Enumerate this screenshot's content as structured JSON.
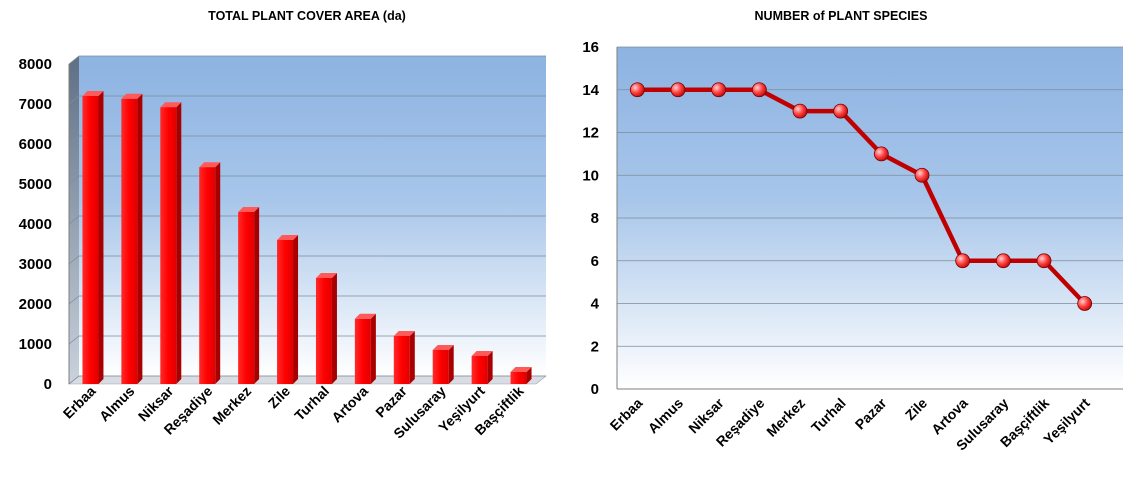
{
  "chart_data": [
    {
      "type": "bar",
      "title": "TOTAL PLANT COVER AREA (da)",
      "categories": [
        "Erbaa",
        "Almus",
        "Niksar",
        "Reşadiye",
        "Merkez",
        "Zile",
        "Turhal",
        "Artova",
        "Pazar",
        "Sulusaray",
        "Yeşilyurt",
        "Başçiftlik"
      ],
      "values": [
        7200,
        7130,
        6920,
        5420,
        4300,
        3600,
        2650,
        1630,
        1200,
        850,
        700,
        300
      ],
      "yticks": [
        "0",
        "1000",
        "2000",
        "3000",
        "4000",
        "5000",
        "6000",
        "7000",
        "8000"
      ],
      "ylim": [
        0,
        8000
      ],
      "grid": true,
      "colors": {
        "bar": "#ff0000",
        "bar_side": "#a80000",
        "bar_top": "#ff5a5a",
        "plot_top": "#8db3e2",
        "plot_bottom": "#ffffff"
      }
    },
    {
      "type": "line",
      "title": "NUMBER of PLANT SPECIES",
      "categories": [
        "Erbaa",
        "Almus",
        "Niksar",
        "Reşadiye",
        "Merkez",
        "Turhal",
        "Pazar",
        "Zile",
        "Artova",
        "Sulusaray",
        "Başçiftlik",
        "Yeşilyurt"
      ],
      "values": [
        14,
        14,
        14,
        14,
        13,
        13,
        11,
        10,
        6,
        6,
        6,
        4
      ],
      "yticks": [
        "0",
        "2",
        "4",
        "6",
        "8",
        "10",
        "12",
        "14",
        "16"
      ],
      "ylim": [
        0,
        16
      ],
      "grid": true,
      "colors": {
        "line": "#c00000",
        "marker": "#ff3333",
        "plot_top": "#8db3e2",
        "plot_bottom": "#ffffff"
      }
    }
  ]
}
